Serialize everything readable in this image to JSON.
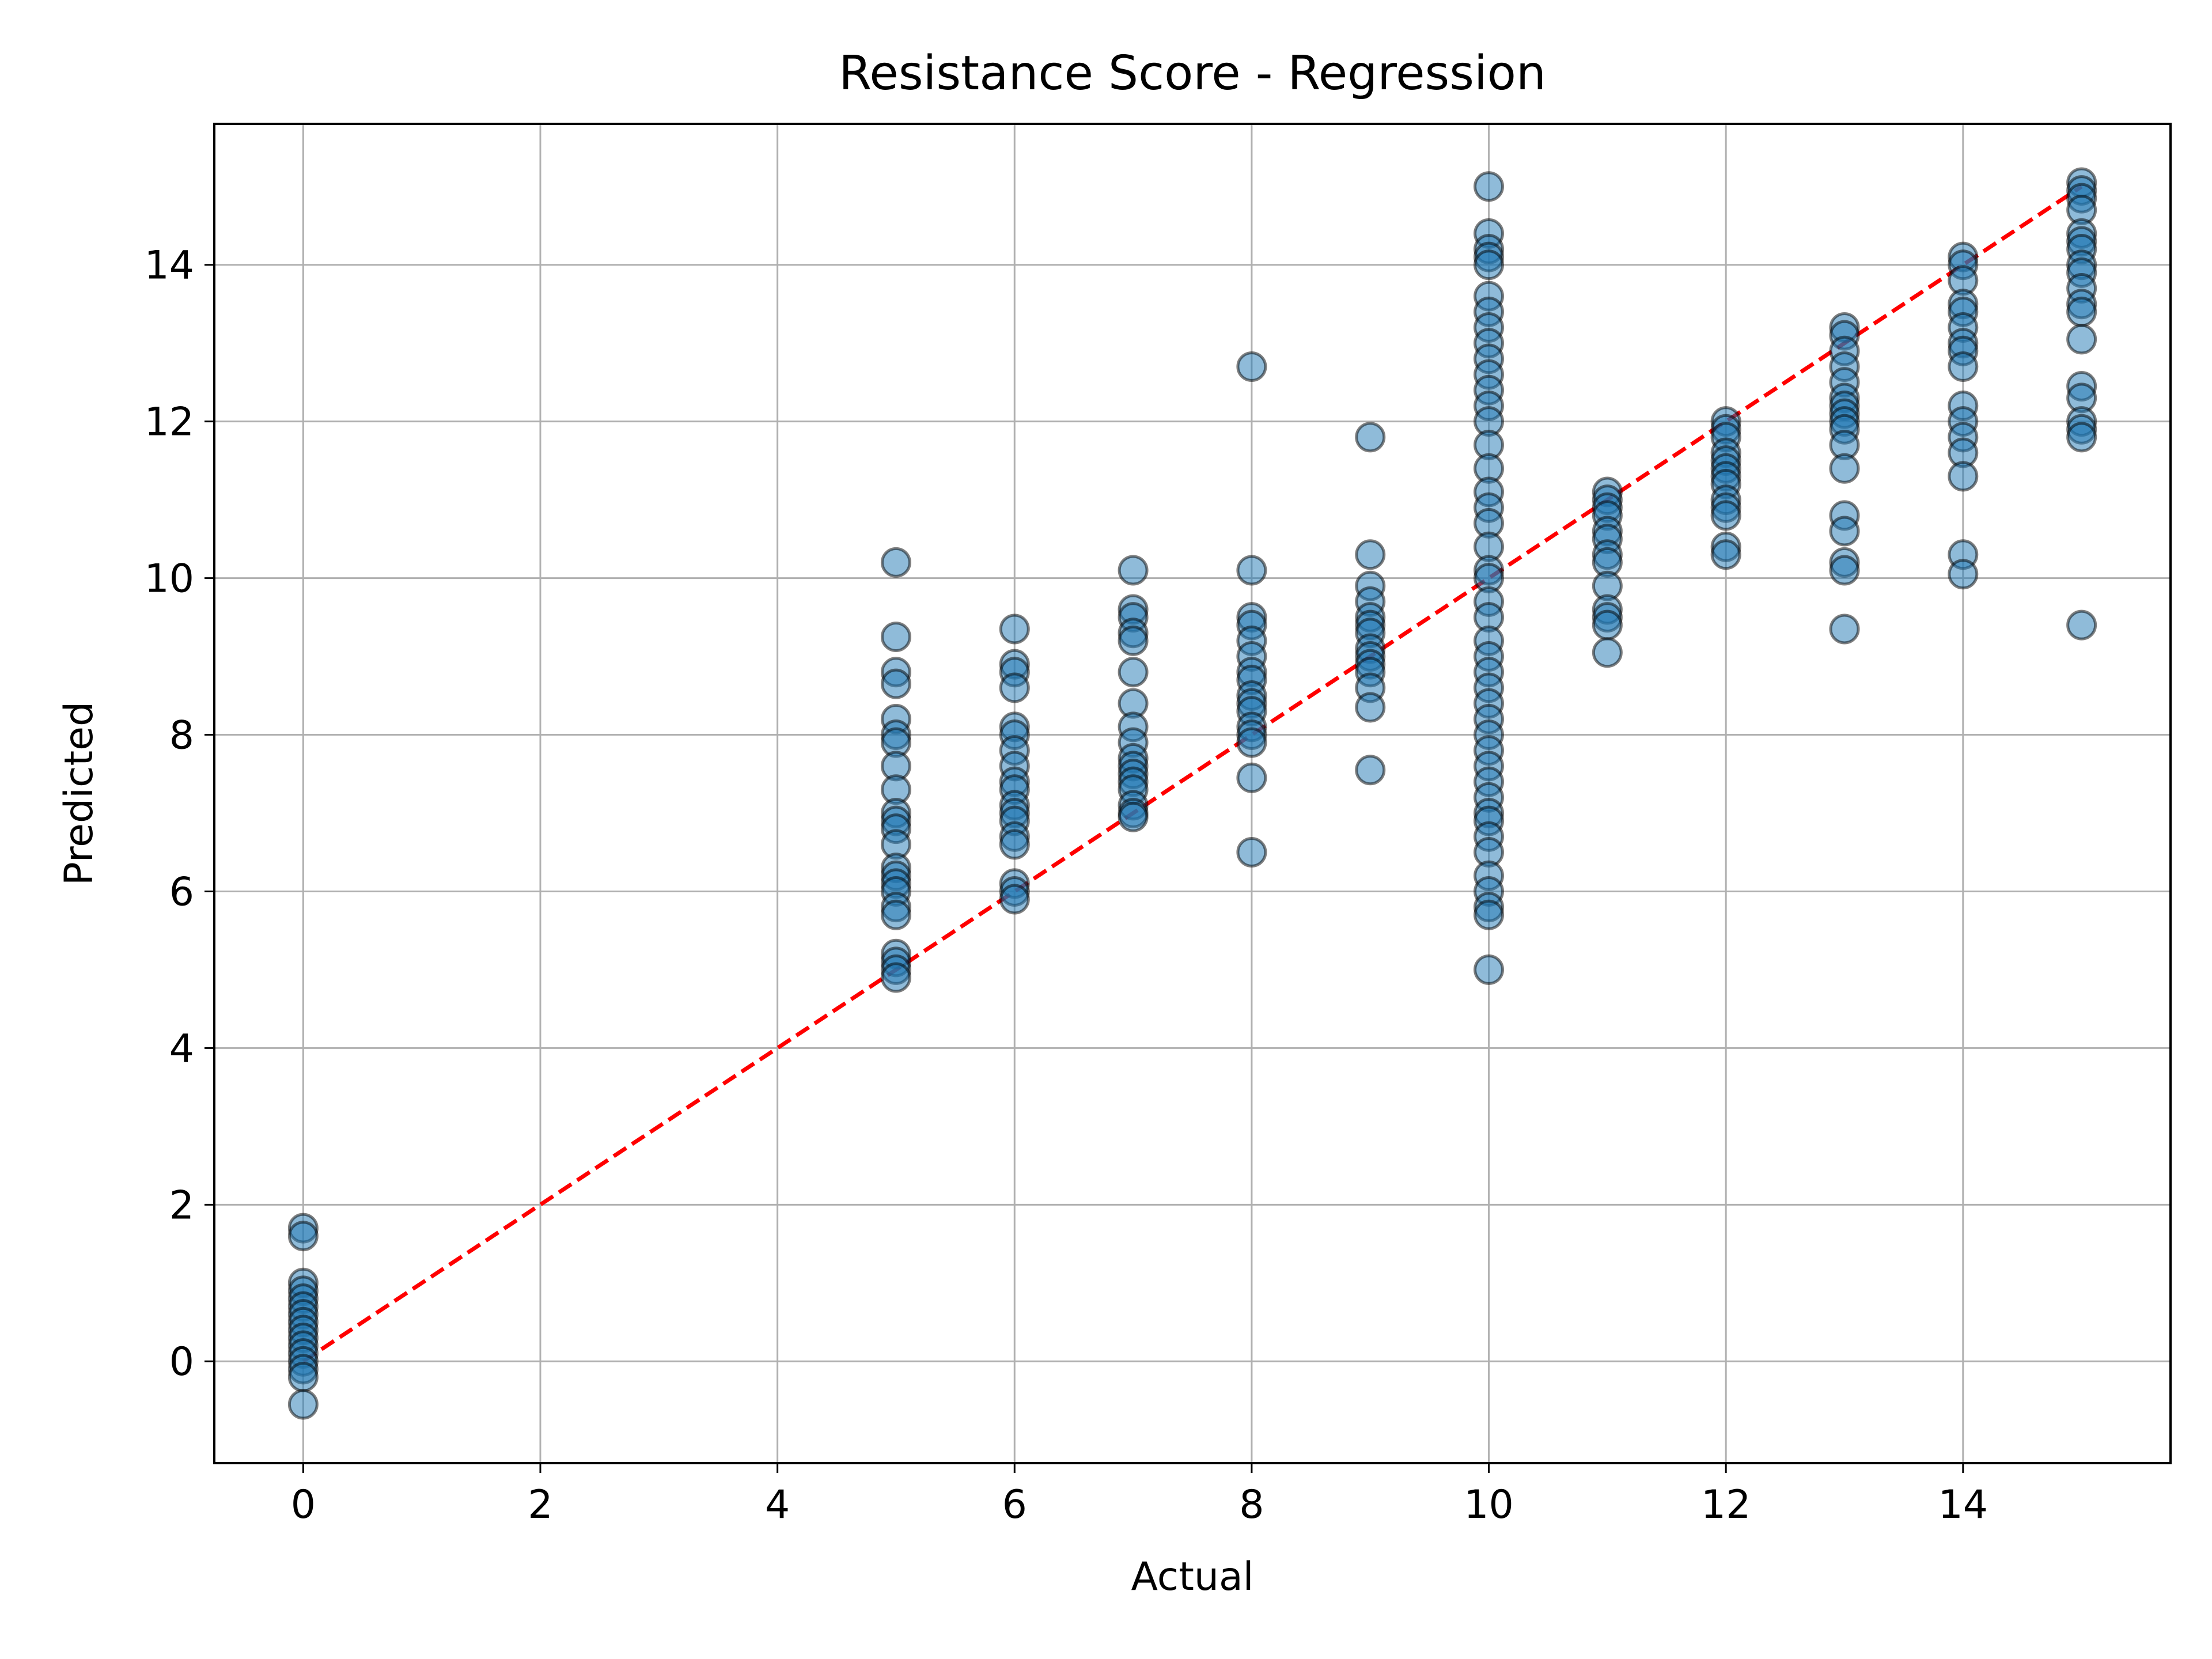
{
  "chart_data": {
    "type": "scatter",
    "title": "Resistance Score - Regression",
    "xlabel": "Actual",
    "ylabel": "Predicted",
    "xlim": [
      -0.75,
      15.75
    ],
    "ylim": [
      -1.3,
      15.8
    ],
    "xticks": [
      "0",
      "2",
      "4",
      "6",
      "8",
      "10",
      "12",
      "14"
    ],
    "yticks": [
      "0",
      "2",
      "4",
      "6",
      "8",
      "10",
      "12",
      "14"
    ],
    "grid": true,
    "marker_color": "#1f77b4",
    "marker_edge_color": "#000000",
    "marker_alpha": 0.5,
    "reference_line": {
      "x": [
        0,
        15
      ],
      "y": [
        0,
        15
      ],
      "color": "#ff0000",
      "style": "dashed"
    },
    "points": [
      [
        0,
        1.7
      ],
      [
        0,
        1.6
      ],
      [
        0,
        1.0
      ],
      [
        0,
        0.9
      ],
      [
        0,
        0.8
      ],
      [
        0,
        0.7
      ],
      [
        0,
        0.6
      ],
      [
        0,
        0.5
      ],
      [
        0,
        0.4
      ],
      [
        0,
        0.3
      ],
      [
        0,
        0.2
      ],
      [
        0,
        0.1
      ],
      [
        0,
        0.0
      ],
      [
        0,
        -0.1
      ],
      [
        0,
        -0.2
      ],
      [
        0,
        -0.55
      ],
      [
        5,
        10.2
      ],
      [
        5,
        9.25
      ],
      [
        5,
        8.8
      ],
      [
        5,
        8.65
      ],
      [
        5,
        8.2
      ],
      [
        5,
        8.0
      ],
      [
        5,
        7.9
      ],
      [
        5,
        7.6
      ],
      [
        5,
        7.3
      ],
      [
        5,
        7.0
      ],
      [
        5,
        6.9
      ],
      [
        5,
        6.8
      ],
      [
        5,
        6.6
      ],
      [
        5,
        6.3
      ],
      [
        5,
        6.2
      ],
      [
        5,
        6.1
      ],
      [
        5,
        6.0
      ],
      [
        5,
        5.8
      ],
      [
        5,
        5.7
      ],
      [
        5,
        5.2
      ],
      [
        5,
        5.1
      ],
      [
        5,
        5.0
      ],
      [
        5,
        4.9
      ],
      [
        6,
        9.35
      ],
      [
        6,
        8.9
      ],
      [
        6,
        8.8
      ],
      [
        6,
        8.6
      ],
      [
        6,
        8.1
      ],
      [
        6,
        8.0
      ],
      [
        6,
        7.8
      ],
      [
        6,
        7.6
      ],
      [
        6,
        7.4
      ],
      [
        6,
        7.3
      ],
      [
        6,
        7.1
      ],
      [
        6,
        7.0
      ],
      [
        6,
        6.9
      ],
      [
        6,
        6.7
      ],
      [
        6,
        6.6
      ],
      [
        6,
        6.1
      ],
      [
        6,
        6.0
      ],
      [
        6,
        5.9
      ],
      [
        7,
        10.1
      ],
      [
        7,
        9.6
      ],
      [
        7,
        9.5
      ],
      [
        7,
        9.3
      ],
      [
        7,
        9.2
      ],
      [
        7,
        8.8
      ],
      [
        7,
        8.4
      ],
      [
        7,
        8.1
      ],
      [
        7,
        7.9
      ],
      [
        7,
        7.7
      ],
      [
        7,
        7.6
      ],
      [
        7,
        7.5
      ],
      [
        7,
        7.4
      ],
      [
        7,
        7.3
      ],
      [
        7,
        7.1
      ],
      [
        7,
        7.0
      ],
      [
        7,
        6.95
      ],
      [
        8,
        12.7
      ],
      [
        8,
        10.1
      ],
      [
        8,
        9.5
      ],
      [
        8,
        9.4
      ],
      [
        8,
        9.2
      ],
      [
        8,
        9.0
      ],
      [
        8,
        8.8
      ],
      [
        8,
        8.7
      ],
      [
        8,
        8.5
      ],
      [
        8,
        8.4
      ],
      [
        8,
        8.3
      ],
      [
        8,
        8.1
      ],
      [
        8,
        8.0
      ],
      [
        8,
        7.9
      ],
      [
        8,
        7.45
      ],
      [
        8,
        6.5
      ],
      [
        9,
        11.8
      ],
      [
        9,
        10.3
      ],
      [
        9,
        9.9
      ],
      [
        9,
        9.7
      ],
      [
        9,
        9.5
      ],
      [
        9,
        9.4
      ],
      [
        9,
        9.3
      ],
      [
        9,
        9.1
      ],
      [
        9,
        9.0
      ],
      [
        9,
        8.9
      ],
      [
        9,
        8.8
      ],
      [
        9,
        8.6
      ],
      [
        9,
        8.35
      ],
      [
        9,
        7.55
      ],
      [
        10,
        15.0
      ],
      [
        10,
        14.4
      ],
      [
        10,
        14.2
      ],
      [
        10,
        14.1
      ],
      [
        10,
        14.0
      ],
      [
        10,
        13.6
      ],
      [
        10,
        13.4
      ],
      [
        10,
        13.2
      ],
      [
        10,
        13.0
      ],
      [
        10,
        12.8
      ],
      [
        10,
        12.6
      ],
      [
        10,
        12.4
      ],
      [
        10,
        12.2
      ],
      [
        10,
        12.0
      ],
      [
        10,
        11.7
      ],
      [
        10,
        11.4
      ],
      [
        10,
        11.1
      ],
      [
        10,
        10.9
      ],
      [
        10,
        10.7
      ],
      [
        10,
        10.4
      ],
      [
        10,
        10.1
      ],
      [
        10,
        10.0
      ],
      [
        10,
        9.7
      ],
      [
        10,
        9.5
      ],
      [
        10,
        9.2
      ],
      [
        10,
        9.0
      ],
      [
        10,
        8.8
      ],
      [
        10,
        8.6
      ],
      [
        10,
        8.4
      ],
      [
        10,
        8.2
      ],
      [
        10,
        8.0
      ],
      [
        10,
        7.8
      ],
      [
        10,
        7.6
      ],
      [
        10,
        7.4
      ],
      [
        10,
        7.2
      ],
      [
        10,
        7.0
      ],
      [
        10,
        6.9
      ],
      [
        10,
        6.7
      ],
      [
        10,
        6.5
      ],
      [
        10,
        6.2
      ],
      [
        10,
        6.0
      ],
      [
        10,
        5.8
      ],
      [
        10,
        5.7
      ],
      [
        10,
        5.0
      ],
      [
        11,
        11.1
      ],
      [
        11,
        11.0
      ],
      [
        11,
        10.9
      ],
      [
        11,
        10.8
      ],
      [
        11,
        10.6
      ],
      [
        11,
        10.5
      ],
      [
        11,
        10.3
      ],
      [
        11,
        10.2
      ],
      [
        11,
        9.9
      ],
      [
        11,
        9.6
      ],
      [
        11,
        9.5
      ],
      [
        11,
        9.4
      ],
      [
        11,
        9.05
      ],
      [
        12,
        12.0
      ],
      [
        12,
        11.9
      ],
      [
        12,
        11.8
      ],
      [
        12,
        11.6
      ],
      [
        12,
        11.5
      ],
      [
        12,
        11.4
      ],
      [
        12,
        11.3
      ],
      [
        12,
        11.2
      ],
      [
        12,
        11.0
      ],
      [
        12,
        10.9
      ],
      [
        12,
        10.8
      ],
      [
        12,
        10.4
      ],
      [
        12,
        10.3
      ],
      [
        13,
        13.2
      ],
      [
        13,
        13.1
      ],
      [
        13,
        12.9
      ],
      [
        13,
        12.7
      ],
      [
        13,
        12.5
      ],
      [
        13,
        12.3
      ],
      [
        13,
        12.2
      ],
      [
        13,
        12.1
      ],
      [
        13,
        12.0
      ],
      [
        13,
        11.9
      ],
      [
        13,
        11.7
      ],
      [
        13,
        11.4
      ],
      [
        13,
        10.8
      ],
      [
        13,
        10.6
      ],
      [
        13,
        10.2
      ],
      [
        13,
        10.1
      ],
      [
        13,
        9.35
      ],
      [
        14,
        14.1
      ],
      [
        14,
        14.0
      ],
      [
        14,
        13.8
      ],
      [
        14,
        13.5
      ],
      [
        14,
        13.4
      ],
      [
        14,
        13.2
      ],
      [
        14,
        13.0
      ],
      [
        14,
        12.9
      ],
      [
        14,
        12.7
      ],
      [
        14,
        12.2
      ],
      [
        14,
        12.0
      ],
      [
        14,
        11.8
      ],
      [
        14,
        11.6
      ],
      [
        14,
        11.3
      ],
      [
        14,
        10.3
      ],
      [
        14,
        10.05
      ],
      [
        15,
        15.05
      ],
      [
        15,
        14.95
      ],
      [
        15,
        14.85
      ],
      [
        15,
        14.7
      ],
      [
        15,
        14.4
      ],
      [
        15,
        14.3
      ],
      [
        15,
        14.2
      ],
      [
        15,
        14.0
      ],
      [
        15,
        13.9
      ],
      [
        15,
        13.7
      ],
      [
        15,
        13.5
      ],
      [
        15,
        13.4
      ],
      [
        15,
        13.05
      ],
      [
        15,
        12.45
      ],
      [
        15,
        12.3
      ],
      [
        15,
        12.0
      ],
      [
        15,
        11.9
      ],
      [
        15,
        11.8
      ],
      [
        15,
        9.4
      ]
    ]
  }
}
